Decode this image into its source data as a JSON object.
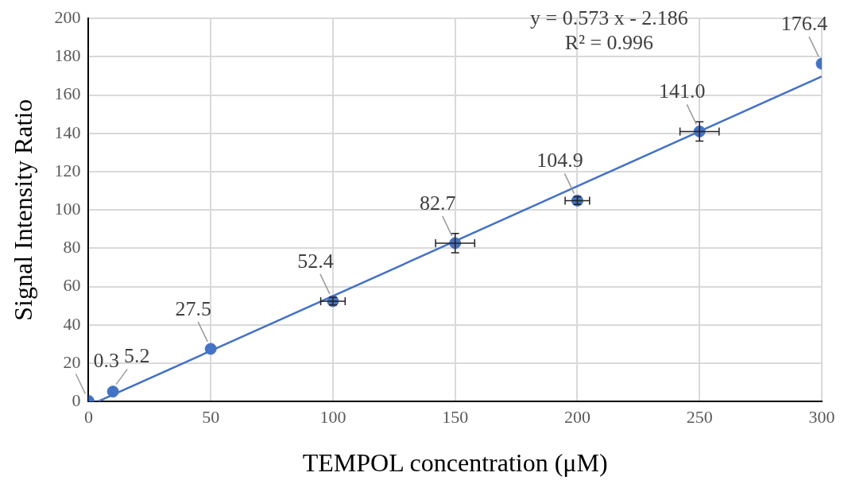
{
  "chart_data": {
    "type": "scatter",
    "xlabel": "TEMPOL concentration (μM)",
    "ylabel": "Signal Intensity Ratio",
    "x": [
      0,
      10,
      50,
      100,
      150,
      200,
      250,
      300
    ],
    "series": [
      {
        "type": "scatter",
        "color": "#4472c4",
        "values": [
          0.3,
          5.2,
          27.5,
          52.4,
          82.7,
          104.9,
          141.0,
          176.4
        ],
        "value_labels": [
          "0.3",
          "5.2",
          "27.5",
          "52.4",
          "82.7",
          "104.9",
          "141.0",
          "176.4"
        ],
        "errors": [
          null,
          null,
          null,
          2,
          5,
          2,
          5,
          null
        ],
        "xerrors": [
          null,
          null,
          null,
          5,
          8,
          5,
          8,
          null
        ]
      },
      {
        "type": "line",
        "color": "#4472c4",
        "marker": "none",
        "x": [
          4,
          300
        ],
        "values": [
          0.1,
          169.7
        ]
      }
    ],
    "annotations": [
      "y = 0.573 x - 2.186",
      "R² = 0.996"
    ],
    "xlim": [
      0,
      300
    ],
    "xticks": [
      0,
      50,
      100,
      150,
      200,
      250,
      300
    ],
    "ylim": [
      0,
      200
    ],
    "yticks": [
      0,
      20,
      40,
      60,
      80,
      100,
      120,
      140,
      160,
      180,
      200
    ],
    "grid": true,
    "marker": "circle",
    "legend": false
  }
}
